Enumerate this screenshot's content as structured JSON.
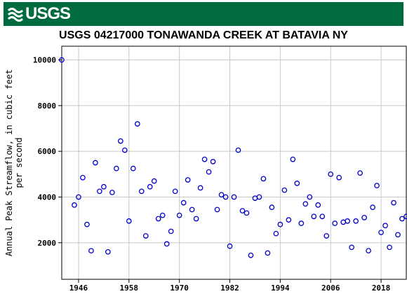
{
  "header": {
    "logo_text": "USGS",
    "brand_color": "#006b3f"
  },
  "chart_data": {
    "type": "scatter",
    "title": "USGS 04217000 TONAWANDA CREEK AT BATAVIA NY",
    "xlabel": "",
    "ylabel_lines": [
      "Annual Peak Streamflow, in cubic feet",
      "per second"
    ],
    "xlim": [
      1942,
      2024
    ],
    "ylim": [
      400,
      10600
    ],
    "x_ticks": [
      1946,
      1958,
      1970,
      1982,
      1994,
      2006,
      2018
    ],
    "y_ticks": [
      2000,
      4000,
      6000,
      8000,
      10000
    ],
    "grid": true,
    "marker_color": "#0000cc",
    "series": [
      {
        "x": [
          1942,
          1945,
          1946,
          1947,
          1948,
          1949,
          1950,
          1951,
          1952,
          1953,
          1954,
          1955,
          1956,
          1957,
          1958,
          1959,
          1960,
          1961,
          1962,
          1963,
          1964,
          1965,
          1966,
          1967,
          1968,
          1969,
          1970,
          1971,
          1972,
          1973,
          1974,
          1975,
          1976,
          1977,
          1978,
          1979,
          1980,
          1981,
          1982,
          1983,
          1984,
          1985,
          1986,
          1987,
          1988,
          1989,
          1990,
          1991,
          1992,
          1993,
          1994,
          1995,
          1996,
          1997,
          1998,
          1999,
          2000,
          2001,
          2002,
          2003,
          2004,
          2005,
          2006,
          2007,
          2008,
          2009,
          2010,
          2011,
          2012,
          2013,
          2014,
          2015,
          2016,
          2017,
          2018,
          2019,
          2020,
          2021,
          2022,
          2023,
          2024
        ],
        "y": [
          10000,
          3650,
          4000,
          4850,
          2800,
          1650,
          5500,
          4250,
          4450,
          1600,
          4200,
          5250,
          6450,
          6050,
          2950,
          5250,
          7200,
          4250,
          2300,
          4450,
          4700,
          3050,
          3200,
          1950,
          2500,
          4250,
          3200,
          3750,
          4750,
          3450,
          3050,
          4400,
          5650,
          5100,
          5550,
          3450,
          4100,
          4000,
          1850,
          4000,
          6050,
          3400,
          3300,
          1450,
          3950,
          4000,
          4800,
          1550,
          3550,
          2400,
          2800,
          4300,
          3000,
          5650,
          4600,
          2850,
          3700,
          4000,
          3150,
          3650,
          3150,
          2300,
          5000,
          2850,
          4850,
          2900,
          2950,
          1800,
          2950,
          5050,
          3100,
          1650,
          3550,
          4500,
          2450,
          2750,
          1800,
          3750,
          2350,
          3050,
          3150
        ]
      }
    ]
  }
}
